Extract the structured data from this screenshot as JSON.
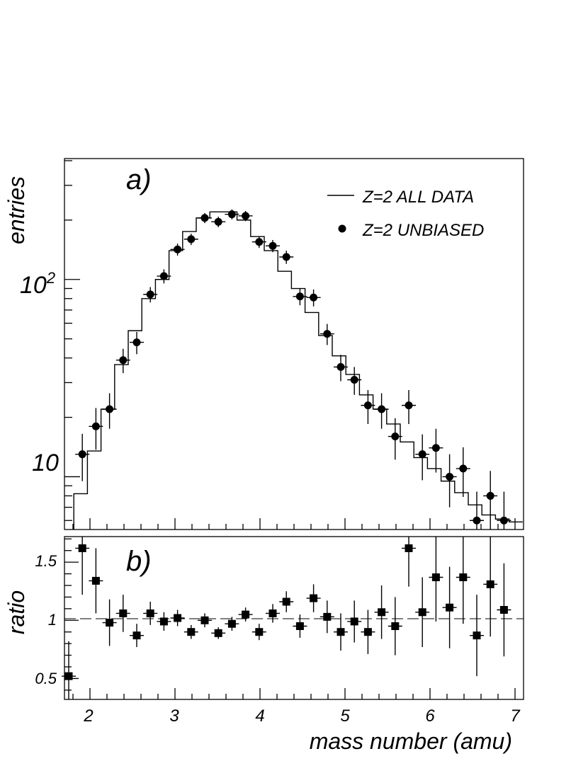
{
  "chart_data": [
    {
      "panel_label": "a)",
      "type": "line",
      "ylabel": "entries",
      "y_scale": "log",
      "ylim": [
        5.4,
        410
      ],
      "xlim": [
        1.7,
        7.1
      ],
      "y_tick_labels": [
        "10",
        "10^2"
      ],
      "grid": false,
      "legend_position": "top-right",
      "series": [
        {
          "name": "Z=2 ALL DATA",
          "style": "histogram",
          "bin_edges": [
            1.81,
            1.97,
            2.13,
            2.29,
            2.45,
            2.61,
            2.77,
            2.93,
            3.09,
            3.25,
            3.41,
            3.57,
            3.73,
            3.89,
            4.05,
            4.21,
            4.37,
            4.53,
            4.69,
            4.85,
            5.01,
            5.17,
            5.33,
            5.49,
            5.65,
            5.81,
            5.97,
            6.13,
            6.29,
            6.45,
            6.61,
            6.77,
            6.93,
            7.09
          ],
          "values": [
            8.2,
            13.5,
            22,
            37,
            55,
            80,
            100,
            140,
            175,
            205,
            220,
            220,
            200,
            165,
            140,
            110,
            90,
            68,
            52,
            41,
            33,
            26,
            22,
            18.5,
            15,
            12.5,
            11,
            9.5,
            8.3,
            7.2,
            6.4,
            6.1,
            5.9
          ]
        },
        {
          "name": "Z=2 UNBIASED",
          "style": "points",
          "x": [
            1.91,
            2.07,
            2.23,
            2.39,
            2.55,
            2.71,
            2.87,
            3.03,
            3.19,
            3.35,
            3.51,
            3.67,
            3.83,
            3.99,
            4.15,
            4.31,
            4.47,
            4.63,
            4.79,
            4.95,
            5.11,
            5.27,
            5.43,
            5.59,
            5.75,
            5.91,
            6.07,
            6.23,
            6.39,
            6.55,
            6.71,
            6.87
          ],
          "y": [
            13,
            18,
            22,
            39,
            48,
            84,
            104,
            142,
            160,
            205,
            196,
            214,
            210,
            155,
            148,
            130,
            82,
            81,
            53,
            36,
            31,
            23,
            22,
            16,
            23,
            13,
            14,
            10,
            11,
            6,
            8,
            6
          ],
          "err_low": [
            3.5,
            4.3,
            4.5,
            5.5,
            6.2,
            7.5,
            8.5,
            10,
            10.5,
            12,
            12,
            12.5,
            12.5,
            10.5,
            10.5,
            10,
            8,
            8,
            6.5,
            5.5,
            5,
            4.5,
            4.5,
            3.8,
            4.5,
            3.4,
            3.5,
            3,
            3.1,
            2.4,
            2.7,
            2.4
          ],
          "err_high": [
            3.5,
            4.3,
            4.5,
            5.5,
            6.2,
            7.5,
            8.5,
            10,
            10.5,
            12,
            12,
            12.5,
            12.5,
            10.5,
            10.5,
            10,
            8,
            8,
            6.5,
            5.5,
            5,
            4.5,
            4.5,
            3.8,
            4.5,
            3.4,
            3.5,
            3,
            3.1,
            2.4,
            2.7,
            2.4
          ]
        }
      ]
    },
    {
      "panel_label": "b)",
      "type": "scatter",
      "xlabel": "mass number (amu)",
      "ylabel": "ratio",
      "xlim": [
        1.7,
        7.1
      ],
      "ylim": [
        0.32,
        1.72
      ],
      "x_tick_labels": [
        "2",
        "3",
        "4",
        "5",
        "6",
        "7"
      ],
      "y_tick_labels": [
        "0.5",
        "1",
        "1.5"
      ],
      "reference_line": 1,
      "series": [
        {
          "x": [
            1.75,
            1.91,
            2.07,
            2.23,
            2.39,
            2.55,
            2.71,
            2.87,
            3.03,
            3.19,
            3.35,
            3.51,
            3.67,
            3.83,
            3.99,
            4.15,
            4.31,
            4.47,
            4.63,
            4.79,
            4.95,
            5.11,
            5.27,
            5.43,
            5.59,
            5.75,
            5.91,
            6.07,
            6.23,
            6.39,
            6.55,
            6.71,
            6.87
          ],
          "y": [
            0.52,
            1.62,
            1.34,
            0.98,
            1.06,
            0.87,
            1.06,
            0.99,
            1.02,
            0.9,
            1.0,
            0.89,
            0.97,
            1.05,
            0.9,
            1.06,
            1.16,
            0.95,
            1.19,
            1.03,
            0.9,
            0.99,
            0.9,
            1.07,
            0.95,
            1.62,
            1.07,
            1.37,
            1.11,
            1.37,
            0.87,
            1.31,
            1.09
          ],
          "err": [
            0.3,
            0.4,
            0.28,
            0.2,
            0.16,
            0.1,
            0.1,
            0.08,
            0.07,
            0.06,
            0.06,
            0.05,
            0.06,
            0.06,
            0.07,
            0.08,
            0.09,
            0.1,
            0.12,
            0.14,
            0.16,
            0.18,
            0.19,
            0.23,
            0.25,
            0.33,
            0.3,
            0.38,
            0.35,
            0.4,
            0.35,
            0.45,
            0.4
          ]
        }
      ]
    }
  ]
}
